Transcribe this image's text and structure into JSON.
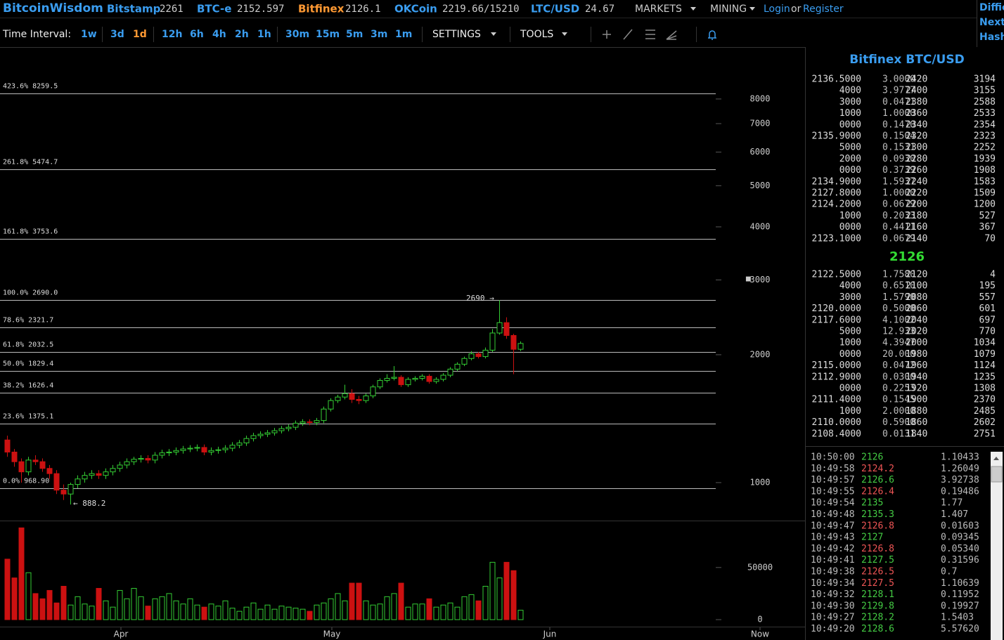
{
  "header": {
    "brand": "BitcoinWisdom",
    "tickers": [
      {
        "name": "Bitstamp",
        "price": "2261"
      },
      {
        "name": "BTC-e",
        "price": "2152.597"
      },
      {
        "name": "Bitfinex",
        "price": "2126.1",
        "color": "#ff9933"
      },
      {
        "name": "OKCoin",
        "price": "2219.66/15210"
      },
      {
        "name": "LTC/USD",
        "price": "24.67"
      }
    ],
    "menus": [
      "MARKETS",
      "MINING"
    ],
    "login": "Login",
    "or": "or",
    "register": "Register",
    "side_links": [
      "Diffic",
      "Next:",
      "Hash"
    ]
  },
  "toolbar": {
    "label": "Time Interval:",
    "intervals": [
      {
        "label": "1w"
      },
      {
        "label": "3d"
      },
      {
        "label": "1d",
        "active": true
      },
      {
        "label": "12h"
      },
      {
        "label": "6h"
      },
      {
        "label": "4h"
      },
      {
        "label": "2h"
      },
      {
        "label": "1h"
      },
      {
        "label": "30m"
      },
      {
        "label": "15m"
      },
      {
        "label": "5m"
      },
      {
        "label": "3m"
      },
      {
        "label": "1m"
      }
    ],
    "menus": [
      "SETTINGS",
      "TOOLS"
    ]
  },
  "chart_data": {
    "type": "candlestick",
    "log_y": true,
    "ylim": [
      814,
      10600
    ],
    "yticks": [
      1000,
      2000,
      3000,
      4000,
      5000,
      6000,
      7000,
      8000
    ],
    "xlim": [
      -1,
      113.5
    ],
    "xticks": [
      {
        "value": 16.2,
        "label": "Apr"
      },
      {
        "value": 46.2,
        "label": "May"
      },
      {
        "value": 77.2,
        "label": "Jun"
      },
      {
        "value": 107.1,
        "label": "Now"
      }
    ],
    "up_color": "#33cc33",
    "down_color": "#cc1111",
    "open": [
      1260,
      1180,
      1120,
      1060,
      1130,
      1120,
      1080,
      1050,
      960,
      940,
      990,
      1020,
      1040,
      1050,
      1040,
      1060,
      1080,
      1100,
      1120,
      1135,
      1140,
      1130,
      1160,
      1175,
      1180,
      1190,
      1200,
      1205,
      1210,
      1180,
      1190,
      1195,
      1205,
      1225,
      1240,
      1270,
      1290,
      1300,
      1310,
      1325,
      1340,
      1350,
      1380,
      1390,
      1385,
      1400,
      1490,
      1560,
      1590,
      1620,
      1570,
      1560,
      1600,
      1680,
      1740,
      1760,
      1770,
      1700,
      1750,
      1760,
      1780,
      1730,
      1750,
      1790,
      1850,
      1900,
      1960,
      2010,
      1980,
      2050,
      2250,
      2380,
      2220,
      2060
    ],
    "high": [
      1290,
      1200,
      1140,
      1150,
      1160,
      1140,
      1100,
      1070,
      990,
      1000,
      1040,
      1060,
      1070,
      1070,
      1080,
      1100,
      1120,
      1140,
      1150,
      1160,
      1160,
      1180,
      1195,
      1200,
      1210,
      1220,
      1225,
      1230,
      1230,
      1210,
      1215,
      1225,
      1245,
      1260,
      1290,
      1310,
      1320,
      1330,
      1345,
      1360,
      1370,
      1400,
      1410,
      1410,
      1420,
      1510,
      1580,
      1610,
      1700,
      1660,
      1600,
      1620,
      1700,
      1760,
      1800,
      1880,
      1790,
      1770,
      1780,
      1800,
      1800,
      1770,
      1810,
      1870,
      1920,
      1980,
      2040,
      2030,
      2080,
      2300,
      2690,
      2450,
      2240,
      2150
    ],
    "low": [
      1150,
      1090,
      1000,
      1040,
      1100,
      1060,
      1020,
      940,
      910,
      888,
      970,
      1000,
      1020,
      1020,
      1020,
      1040,
      1060,
      1080,
      1100,
      1115,
      1110,
      1110,
      1140,
      1155,
      1160,
      1170,
      1180,
      1185,
      1160,
      1160,
      1170,
      1175,
      1185,
      1205,
      1220,
      1250,
      1270,
      1280,
      1290,
      1305,
      1320,
      1330,
      1360,
      1365,
      1365,
      1380,
      1470,
      1540,
      1570,
      1540,
      1530,
      1540,
      1580,
      1660,
      1720,
      1740,
      1680,
      1680,
      1730,
      1740,
      1710,
      1710,
      1730,
      1770,
      1830,
      1880,
      1940,
      1960,
      1960,
      2030,
      2230,
      2180,
      1800,
      2040
    ],
    "close": [
      1180,
      1120,
      1060,
      1130,
      1120,
      1080,
      1050,
      960,
      940,
      990,
      1020,
      1040,
      1050,
      1040,
      1060,
      1080,
      1100,
      1120,
      1135,
      1140,
      1130,
      1160,
      1175,
      1180,
      1190,
      1200,
      1205,
      1210,
      1180,
      1190,
      1195,
      1205,
      1225,
      1240,
      1270,
      1290,
      1300,
      1310,
      1325,
      1340,
      1350,
      1380,
      1390,
      1385,
      1400,
      1490,
      1560,
      1590,
      1620,
      1570,
      1560,
      1600,
      1680,
      1740,
      1760,
      1770,
      1700,
      1750,
      1760,
      1780,
      1730,
      1750,
      1790,
      1850,
      1900,
      1960,
      2010,
      1980,
      2050,
      2250,
      2380,
      2220,
      2060,
      2126
    ],
    "volume": [
      58000,
      40000,
      88000,
      45000,
      25000,
      20000,
      28000,
      16000,
      32000,
      14000,
      22000,
      15000,
      13000,
      30000,
      18000,
      12000,
      28000,
      20000,
      30000,
      22000,
      13000,
      20000,
      22000,
      25000,
      18000,
      15000,
      20000,
      14000,
      12000,
      15000,
      13000,
      18000,
      11000,
      8000,
      12000,
      16000,
      10000,
      14000,
      10000,
      13000,
      12000,
      11000,
      10000,
      8000,
      14000,
      16000,
      20000,
      25000,
      18000,
      35000,
      35000,
      18000,
      14000,
      15000,
      22000,
      25000,
      35000,
      12000,
      15000,
      15000,
      20000,
      12000,
      14000,
      16000,
      12000,
      22000,
      24000,
      18000,
      32000,
      55000,
      40000,
      55000,
      47000,
      9000
    ],
    "volume_ylim": [
      0,
      95000
    ],
    "volume_ticks": [
      0,
      50000
    ],
    "fib_levels": [
      {
        "ratio": "423.6%",
        "value": 8259.5
      },
      {
        "ratio": "261.8%",
        "value": 5474.7
      },
      {
        "ratio": "161.8%",
        "value": 3753.6
      },
      {
        "ratio": "100.0%",
        "value": {
          "value": 2690,
          "label": "2690.0"
        }
      },
      {
        "ratio": "78.6%",
        "value": 2321.7
      },
      {
        "ratio": "61.8%",
        "value": 2032.5
      },
      {
        "ratio": "50.0%",
        "value": 1829.4
      },
      {
        "ratio": "38.2%",
        "value": 1626.4
      },
      {
        "ratio": "23.6%",
        "value": 1375.1
      },
      {
        "ratio": "0.0%",
        "value": {
          "value": 968.9,
          "label": "968.90"
        }
      }
    ],
    "annotations": [
      "2690 →",
      "← 888.2"
    ]
  },
  "orderbook": {
    "title": "Bitfinex BTC/USD",
    "last": "2126",
    "asks": [
      [
        "2136.5000",
        "3.0000",
        "2420",
        "3194"
      ],
      [
        "4000",
        "3.9777",
        "2400",
        "3155"
      ],
      [
        "3000",
        "0.0471",
        "2380",
        "2588"
      ],
      [
        "1000",
        "1.0000",
        "2360",
        "2533"
      ],
      [
        "0000",
        "0.1470",
        "2340",
        "2354"
      ],
      [
        "2135.9000",
        "0.1504",
        "2320",
        "2323"
      ],
      [
        "5000",
        "0.1531",
        "2300",
        "2252"
      ],
      [
        "2000",
        "0.0930",
        "2280",
        "1939"
      ],
      [
        "0000",
        "0.3739",
        "2260",
        "1908"
      ],
      [
        "2134.9000",
        "1.5937",
        "2240",
        "1583"
      ],
      [
        "2127.8000",
        "1.0000",
        "2220",
        "1509"
      ],
      [
        "2124.2000",
        "0.0679",
        "2200",
        "1200"
      ],
      [
        "1000",
        "0.2033",
        "2180",
        "527"
      ],
      [
        "0000",
        "0.4411",
        "2160",
        "367"
      ],
      [
        "2123.1000",
        "0.0679",
        "2140",
        "70"
      ]
    ],
    "bids": [
      [
        "2122.5000",
        "1.7580",
        "2120",
        "4"
      ],
      [
        "4000",
        "0.6510",
        "2100",
        "195"
      ],
      [
        "3000",
        "1.5790",
        "2080",
        "557"
      ],
      [
        "2120.0000",
        "0.5000",
        "2060",
        "601"
      ],
      [
        "2117.6000",
        "4.1002",
        "2040",
        "697"
      ],
      [
        "5000",
        "12.933",
        "2020",
        "770"
      ],
      [
        "1000",
        "4.3947",
        "2000",
        "1034"
      ],
      [
        "0000",
        "20.000",
        "1980",
        "1079"
      ],
      [
        "2115.0000",
        "0.0472",
        "1960",
        "1124"
      ],
      [
        "2112.9000",
        "0.0300",
        "1940",
        "1235"
      ],
      [
        "0000",
        "0.2253",
        "1920",
        "1308"
      ],
      [
        "2111.4000",
        "0.1545",
        "1900",
        "2370"
      ],
      [
        "1000",
        "2.0000",
        "1880",
        "2485"
      ],
      [
        "2110.0000",
        "0.5900",
        "1860",
        "2602"
      ],
      [
        "2108.4000",
        "0.0131",
        "1840",
        "2751"
      ]
    ]
  },
  "trades": [
    {
      "time": "10:50:00",
      "price": "2126",
      "amount": "1.10433",
      "color": "#44cc44"
    },
    {
      "time": "10:49:58",
      "price": "2124.2",
      "amount": "1.26049",
      "color": "#ee5555"
    },
    {
      "time": "10:49:57",
      "price": "2126.6",
      "amount": "3.92738",
      "color": "#44cc44"
    },
    {
      "time": "10:49:55",
      "price": "2126.4",
      "amount": "0.19486",
      "color": "#ee5555"
    },
    {
      "time": "10:49:54",
      "price": "2135",
      "amount": "1.77",
      "color": "#44cc44"
    },
    {
      "time": "10:49:48",
      "price": "2135.3",
      "amount": "1.407",
      "color": "#44cc44"
    },
    {
      "time": "10:49:47",
      "price": "2126.8",
      "amount": "0.01603",
      "color": "#ee5555"
    },
    {
      "time": "10:49:43",
      "price": "2127",
      "amount": "0.09345",
      "color": "#44cc44"
    },
    {
      "time": "10:49:42",
      "price": "2126.8",
      "amount": "0.05340",
      "color": "#ee5555"
    },
    {
      "time": "10:49:41",
      "price": "2127.5",
      "amount": "0.31596",
      "color": "#44cc44"
    },
    {
      "time": "10:49:38",
      "price": "2126.5",
      "amount": "0.7",
      "color": "#ee5555"
    },
    {
      "time": "10:49:34",
      "price": "2127.5",
      "amount": "1.10639",
      "color": "#ee5555"
    },
    {
      "time": "10:49:32",
      "price": "2128.1",
      "amount": "0.11952",
      "color": "#44cc44"
    },
    {
      "time": "10:49:30",
      "price": "2129.8",
      "amount": "0.19927",
      "color": "#44cc44"
    },
    {
      "time": "10:49:27",
      "price": "2128.2",
      "amount": "1.5403",
      "color": "#44cc44"
    },
    {
      "time": "10:49:20",
      "price": "2128.6",
      "amount": "5.57620",
      "color": "#44cc44"
    }
  ]
}
